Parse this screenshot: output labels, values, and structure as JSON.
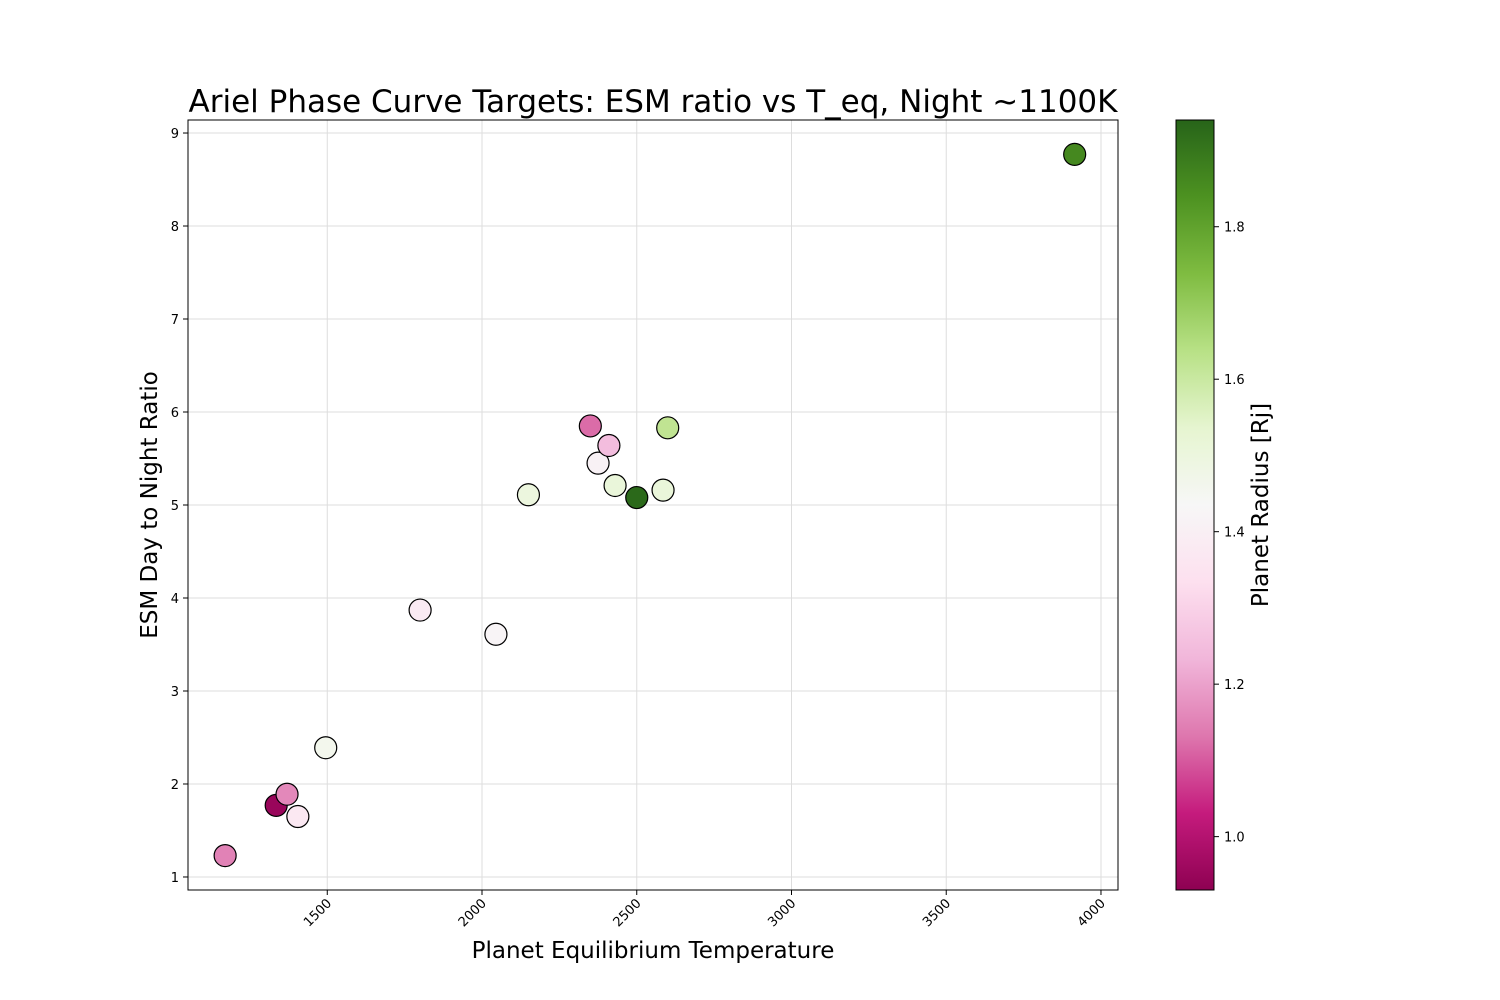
{
  "chart_data": {
    "type": "scatter",
    "title": "Ariel Phase Curve Targets: ESM ratio vs T_eq, Night ~1100K",
    "xlabel": "Planet Equilibrium Temperature",
    "ylabel": "ESM Day to Night Ratio",
    "xlim": [
      1050,
      4055
    ],
    "ylim": [
      0.86,
      9.14
    ],
    "xticks": [
      1500,
      2000,
      2500,
      3000,
      3500,
      4000
    ],
    "yticks": [
      1,
      2,
      3,
      4,
      5,
      6,
      7,
      8,
      9
    ],
    "grid": true,
    "colorbar": {
      "label": "Planet Radius [Rj]",
      "colormap": "PiYG",
      "range": [
        0.93,
        1.94
      ],
      "ticks": [
        "1.0",
        "1.2",
        "1.4",
        "1.6",
        "1.8"
      ]
    },
    "points": [
      {
        "x": 1170,
        "y": 1.23,
        "radius_rj": 1.15
      },
      {
        "x": 1335,
        "y": 1.77,
        "radius_rj": 0.95
      },
      {
        "x": 1370,
        "y": 1.89,
        "radius_rj": 1.16
      },
      {
        "x": 1405,
        "y": 1.65,
        "radius_rj": 1.37
      },
      {
        "x": 1495,
        "y": 2.39,
        "radius_rj": 1.46
      },
      {
        "x": 1800,
        "y": 3.87,
        "radius_rj": 1.38
      },
      {
        "x": 2045,
        "y": 3.61,
        "radius_rj": 1.42
      },
      {
        "x": 2150,
        "y": 5.11,
        "radius_rj": 1.5
      },
      {
        "x": 2350,
        "y": 5.85,
        "radius_rj": 1.12
      },
      {
        "x": 2375,
        "y": 5.45,
        "radius_rj": 1.41
      },
      {
        "x": 2410,
        "y": 5.64,
        "radius_rj": 1.25
      },
      {
        "x": 2430,
        "y": 5.21,
        "radius_rj": 1.51
      },
      {
        "x": 2500,
        "y": 5.08,
        "radius_rj": 1.93
      },
      {
        "x": 2585,
        "y": 5.16,
        "radius_rj": 1.51
      },
      {
        "x": 2600,
        "y": 5.83,
        "radius_rj": 1.62
      },
      {
        "x": 3915,
        "y": 8.77,
        "radius_rj": 1.86
      }
    ]
  }
}
